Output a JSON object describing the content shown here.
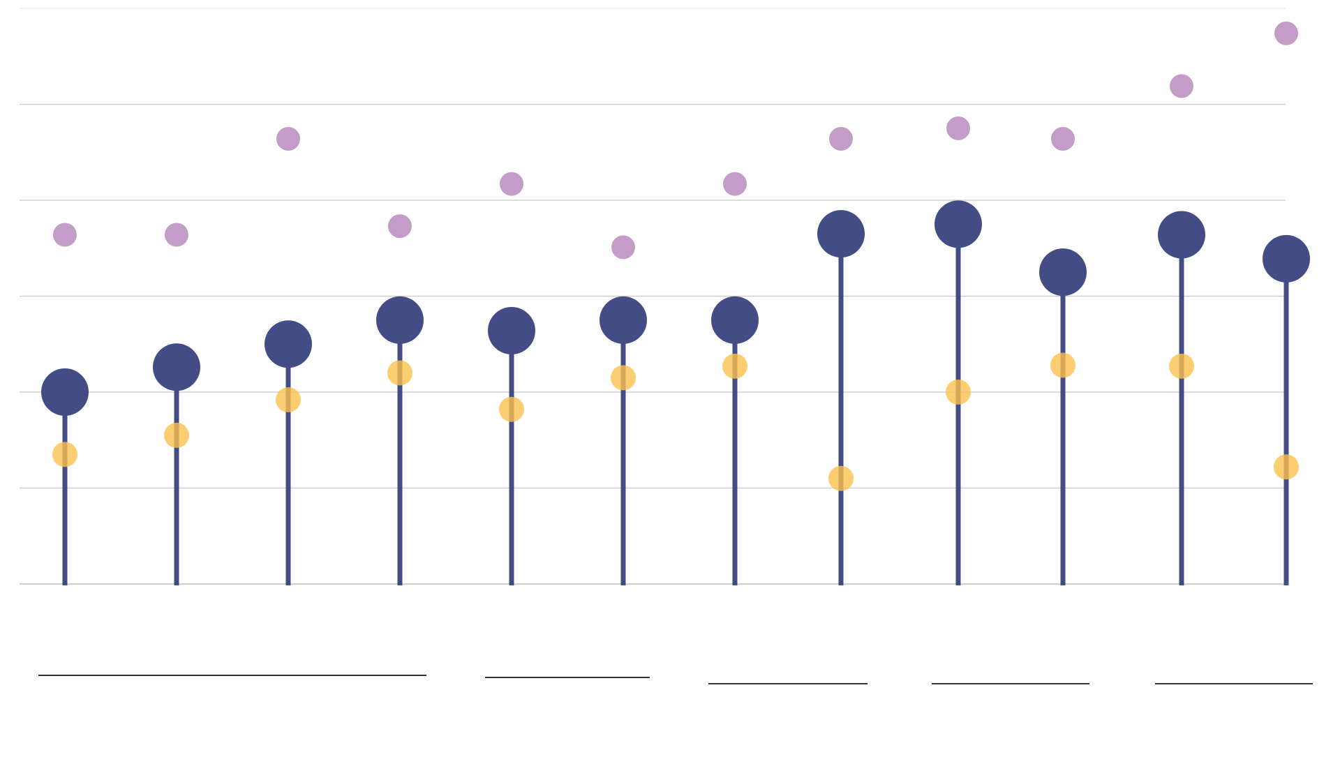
{
  "chart_data": {
    "type": "scatter",
    "subtype": "lollipop-with-markers",
    "title": "",
    "xlabel": "",
    "ylabel": "",
    "ylim": [
      0,
      6
    ],
    "grid": true,
    "gridlines_y": [
      0,
      1,
      2,
      3,
      4,
      5,
      6
    ],
    "categories_count": 12,
    "x": [
      1,
      2,
      3,
      4,
      5,
      6,
      7,
      8,
      9,
      10,
      11,
      12
    ],
    "series": [
      {
        "values": [
          2.0,
          2.26,
          2.5,
          2.75,
          2.64,
          2.75,
          2.75,
          3.65,
          3.75,
          3.25,
          3.64,
          3.39
        ],
        "color": "#434c84",
        "marker": "lollipop"
      },
      {
        "values": [
          1.35,
          1.55,
          1.92,
          2.2,
          1.82,
          2.15,
          2.27,
          1.1,
          2.0,
          2.28,
          2.27,
          1.22
        ],
        "color": "#fdc14f",
        "marker": "dot"
      },
      {
        "values": [
          3.64,
          3.64,
          4.64,
          3.73,
          4.17,
          3.51,
          4.17,
          4.64,
          4.75,
          4.64,
          5.19,
          5.74
        ],
        "color": "#c39dc8",
        "marker": "dot"
      }
    ],
    "groups": [
      {
        "from": 1,
        "to": 4
      },
      {
        "from": 5,
        "to": 6
      },
      {
        "from": 7,
        "to": 8
      },
      {
        "from": 9,
        "to": 10
      },
      {
        "from": 11,
        "to": 12
      }
    ]
  }
}
